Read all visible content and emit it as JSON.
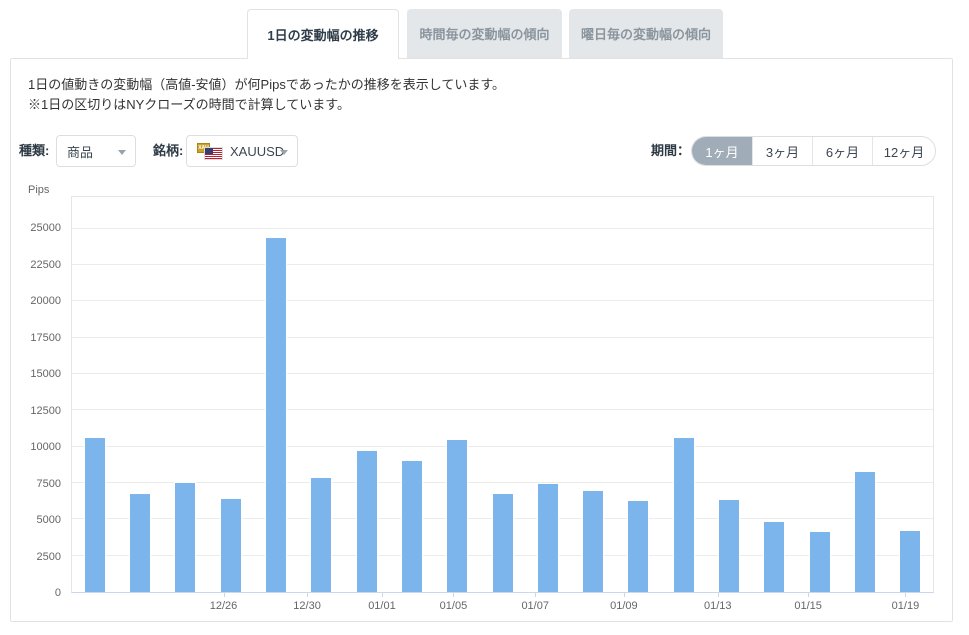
{
  "tabs": [
    {
      "label": "1日の変動幅の推移",
      "active": true
    },
    {
      "label": "時間毎の変動幅の傾向",
      "active": false
    },
    {
      "label": "曜日毎の変動幅の傾向",
      "active": false
    }
  ],
  "description": {
    "line1": "1日の値動きの変動幅（高値-安値）が何Pipsであったかの推移を表示しています。",
    "line2": "※1日の区切りはNYクローズの時間で計算しています。"
  },
  "controls": {
    "type_label": "種類:",
    "type_value": "商品",
    "symbol_label": "銘柄:",
    "symbol_value": "XAUUSD",
    "symbol_icon": "xauusd-flag-icon",
    "symbol_icon_badge": "XAU",
    "period_label": "期間：",
    "periods": [
      {
        "label": "1ヶ月",
        "active": true
      },
      {
        "label": "3ヶ月",
        "active": false
      },
      {
        "label": "6ヶ月",
        "active": false
      },
      {
        "label": "12ヶ月",
        "active": false
      }
    ]
  },
  "colors": {
    "bar": "#7cb5ec",
    "active_period_bg": "#a0acb7",
    "inactive_tab_bg": "#e4e7e9",
    "border": "#dfe3e6",
    "axis_line": "#ccd6eb",
    "gridline": "#ececec",
    "tick_text": "#666666"
  },
  "chart_data": {
    "type": "bar",
    "title": "",
    "xlabel": "",
    "ylabel": "Pips",
    "grid": true,
    "legend": "none",
    "ylim": [
      0,
      27192
    ],
    "yticks": [
      0,
      2500,
      5000,
      7500,
      10000,
      12500,
      15000,
      17500,
      20000,
      22500,
      25000
    ],
    "values": [
      10700,
      6800,
      7600,
      6500,
      24450,
      7900,
      9800,
      9100,
      10500,
      6800,
      7500,
      7000,
      6300,
      10700,
      6400,
      4900,
      4200,
      8300,
      4300
    ],
    "x_tick_labels": [
      {
        "label": "12/26",
        "pos": 0.176
      },
      {
        "label": "12/30",
        "pos": 0.273
      },
      {
        "label": "01/01",
        "pos": 0.36
      },
      {
        "label": "01/05",
        "pos": 0.443
      },
      {
        "label": "01/07",
        "pos": 0.538
      },
      {
        "label": "01/09",
        "pos": 0.641
      },
      {
        "label": "01/13",
        "pos": 0.75
      },
      {
        "label": "01/15",
        "pos": 0.855
      },
      {
        "label": "01/19",
        "pos": 0.968
      }
    ]
  }
}
